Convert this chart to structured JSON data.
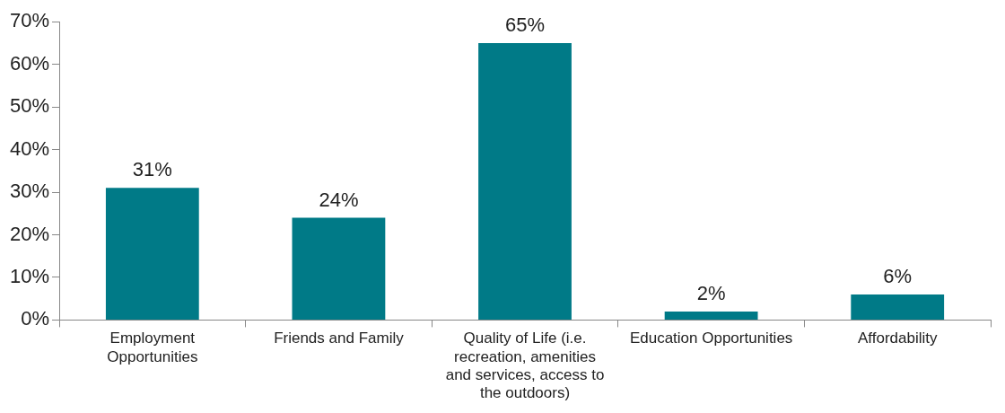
{
  "chart_data": {
    "type": "bar",
    "categories": [
      "Employment Opportunities",
      "Friends and Family",
      "Quality of Life (i.e. recreation, amenities and services, access to the outdoors)",
      "Education Opportunities",
      "Affordability"
    ],
    "values": [
      31,
      24,
      65,
      2,
      6
    ],
    "value_labels": [
      "31%",
      "24%",
      "65%",
      "2%",
      "6%"
    ],
    "color": "#007a87",
    "ylim": [
      0,
      70
    ],
    "yticks": [
      {
        "value": 0,
        "label": "0%"
      },
      {
        "value": 10,
        "label": "10%"
      },
      {
        "value": 20,
        "label": "20%"
      },
      {
        "value": 30,
        "label": "30%"
      },
      {
        "value": 40,
        "label": "40%"
      },
      {
        "value": 50,
        "label": "50%"
      },
      {
        "value": 60,
        "label": "60%"
      },
      {
        "value": 70,
        "label": "70%"
      }
    ],
    "grid": false,
    "legend": false
  }
}
